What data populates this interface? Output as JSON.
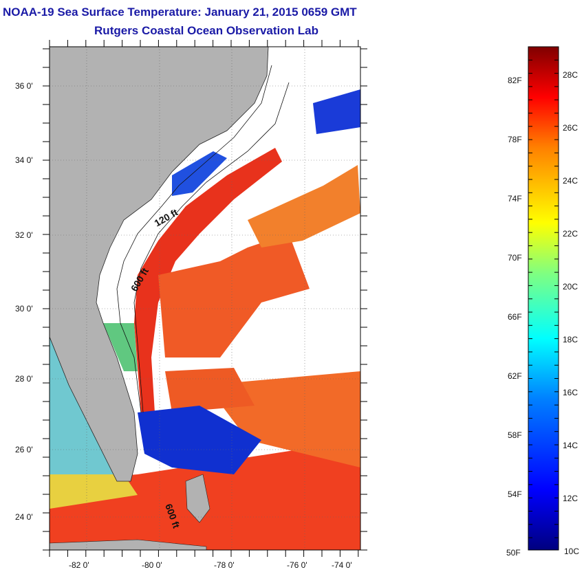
{
  "title": {
    "line1": "NOAA-19 Sea Surface Temperature:  January 21, 2015 0659 GMT",
    "line2": "Rutgers Coastal Ocean Observation Lab"
  },
  "map": {
    "lat_labels": [
      {
        "lat": 36,
        "label": "36 0'"
      },
      {
        "lat": 34,
        "label": "34 0'"
      },
      {
        "lat": 32,
        "label": "32 0'"
      },
      {
        "lat": 30,
        "label": "30 0'"
      },
      {
        "lat": 28,
        "label": "28 0'"
      },
      {
        "lat": 26,
        "label": "26 0'"
      },
      {
        "lat": 24,
        "label": "24 0'"
      }
    ],
    "lon_labels": [
      {
        "lon": -82,
        "label": "-82 0'"
      },
      {
        "lon": -80,
        "label": "-80 0'"
      },
      {
        "lon": -78,
        "label": "-78 0'"
      },
      {
        "lon": -76,
        "label": "-76 0'"
      },
      {
        "lon": -74,
        "label": "-74 0'"
      }
    ],
    "contour_labels": [
      {
        "text": "120 ft"
      },
      {
        "text": "600 ft"
      },
      {
        "text": "600 ft"
      }
    ],
    "colors": {
      "land": "#b2b2b2",
      "cloud": "#ffffff"
    }
  },
  "colorbar": {
    "fahrenheit": [
      "82F",
      "78F",
      "74F",
      "70F",
      "66F",
      "62F",
      "58F",
      "54F",
      "50F"
    ],
    "celsius": [
      "28C",
      "26C",
      "24C",
      "22C",
      "20C",
      "18C",
      "16C",
      "14C",
      "12C",
      "10C"
    ]
  }
}
